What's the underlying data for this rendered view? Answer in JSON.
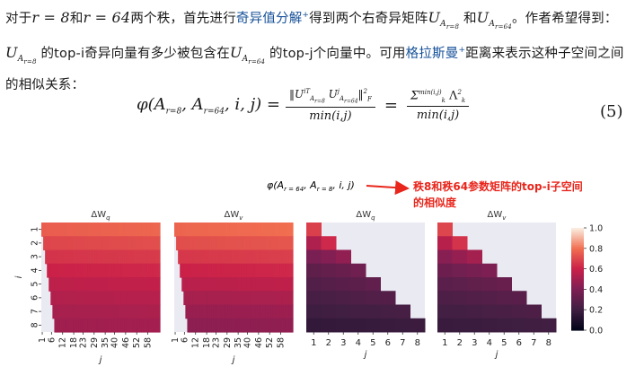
{
  "paragraph": {
    "t1": "对于",
    "m1": "r = 8",
    "t2": "和",
    "m2": "r = 64",
    "t3": "两个秩，首先进行",
    "link1": "奇异值分解",
    "t4": "得到两个右奇异矩阵",
    "m3": "U",
    "m3_sub": "A",
    "m3_subsub": "r=8",
    "t5": "和",
    "m4": "U",
    "m4_sub": "A",
    "m4_subsub": "r=64",
    "t6": "。作者希望得到：",
    "m5": "U",
    "m5_sub": "A",
    "m5_subsub": "r=8",
    "t7": "的top-i奇异向量有多少被包含在",
    "m6": "U",
    "m6_sub": "A",
    "m6_subsub": "r=64",
    "t8": "的top-j个向量中。可用",
    "link2": "格拉斯曼",
    "t9": "距离来表示这种子空间之间的相似关系：",
    "plus": "+"
  },
  "equation": {
    "lhs": "φ(A",
    "lhs_sub1": "r=8",
    "lhs_mid": ", A",
    "lhs_sub2": "r=64",
    "lhs_end": ", i, j) =",
    "frac1_num": "‖U",
    "frac1_num_sup1": "iT",
    "frac1_num_sub1": "A",
    "frac1_num_subsub1": "r=8",
    "frac1_num_mid": " U",
    "frac1_num_sup2": "j",
    "frac1_num_sub2": "A",
    "frac1_num_subsub2": "r=64",
    "frac1_num_end": "‖",
    "frac1_num_norm": "F",
    "frac1_num_pow": "2",
    "frac1_den": "min(i,j)",
    "eq": "=",
    "frac2_num": "Σ",
    "frac2_num_sup": "min(i,j)",
    "frac2_num_sub": "k",
    "frac2_num_lambda": "Λ",
    "frac2_num_lambda_sub": "k",
    "frac2_num_lambda_sup": "2",
    "frac2_den": "min(i,j)",
    "number": "(5)"
  },
  "figure": {
    "formula_label": "φ(A",
    "formula_label_sub1": "r = 64",
    "formula_label_mid": ", A",
    "formula_label_sub2": "r = 8",
    "formula_label_end": ", i, j)",
    "annotation": "秩8和秩64参数矩阵的top-i子空间的相似度",
    "annotation_color": "#e8261c",
    "panels": [
      {
        "title": "ΔW",
        "title_sub": "q",
        "xlabel": "j",
        "ylabel": "i",
        "xticks": [
          "1",
          "6",
          "12",
          "18",
          "23",
          "29",
          "35",
          "40",
          "46",
          "52",
          "58"
        ],
        "yticks": [
          "1",
          "2",
          "3",
          "4",
          "5",
          "6",
          "7",
          "8"
        ]
      },
      {
        "title": "ΔW",
        "title_sub": "v",
        "xlabel": "j",
        "xticks": [
          "1",
          "6",
          "12",
          "18",
          "23",
          "29",
          "35",
          "40",
          "46",
          "52",
          "58"
        ]
      },
      {
        "title": "ΔW",
        "title_sub": "q",
        "xlabel": "j",
        "xticks": [
          "1",
          "2",
          "3",
          "4",
          "5",
          "6",
          "7",
          "8"
        ]
      },
      {
        "title": "ΔW",
        "title_sub": "v",
        "xlabel": "j",
        "xticks": [
          "1",
          "2",
          "3",
          "4",
          "5",
          "6",
          "7",
          "8"
        ]
      }
    ],
    "colorbar_ticks": [
      "1.0",
      "0.8",
      "0.6",
      "0.4",
      "0.2",
      "0.0"
    ]
  },
  "chart_data": [
    {
      "type": "heatmap",
      "title": "ΔWq",
      "xlabel": "j",
      "ylabel": "i",
      "rows": 8,
      "cols": 64,
      "row_values": [
        0.78,
        0.72,
        0.67,
        0.62,
        0.58,
        0.55,
        0.52,
        0.5
      ]
    },
    {
      "type": "heatmap",
      "title": "ΔWv",
      "xlabel": "j",
      "rows": 8,
      "cols": 64,
      "row_values": [
        0.8,
        0.74,
        0.68,
        0.62,
        0.57,
        0.52,
        0.48,
        0.45
      ]
    },
    {
      "type": "heatmap",
      "title": "ΔWq",
      "xlabel": "j",
      "rows": 8,
      "cols": 8,
      "row_values": [
        0.8,
        0.62,
        0.45,
        0.35,
        0.3,
        0.26,
        0.22,
        0.18
      ]
    },
    {
      "type": "heatmap",
      "title": "ΔWv",
      "xlabel": "j",
      "rows": 8,
      "cols": 8,
      "row_values": [
        0.82,
        0.65,
        0.5,
        0.4,
        0.33,
        0.28,
        0.24,
        0.2
      ]
    }
  ]
}
